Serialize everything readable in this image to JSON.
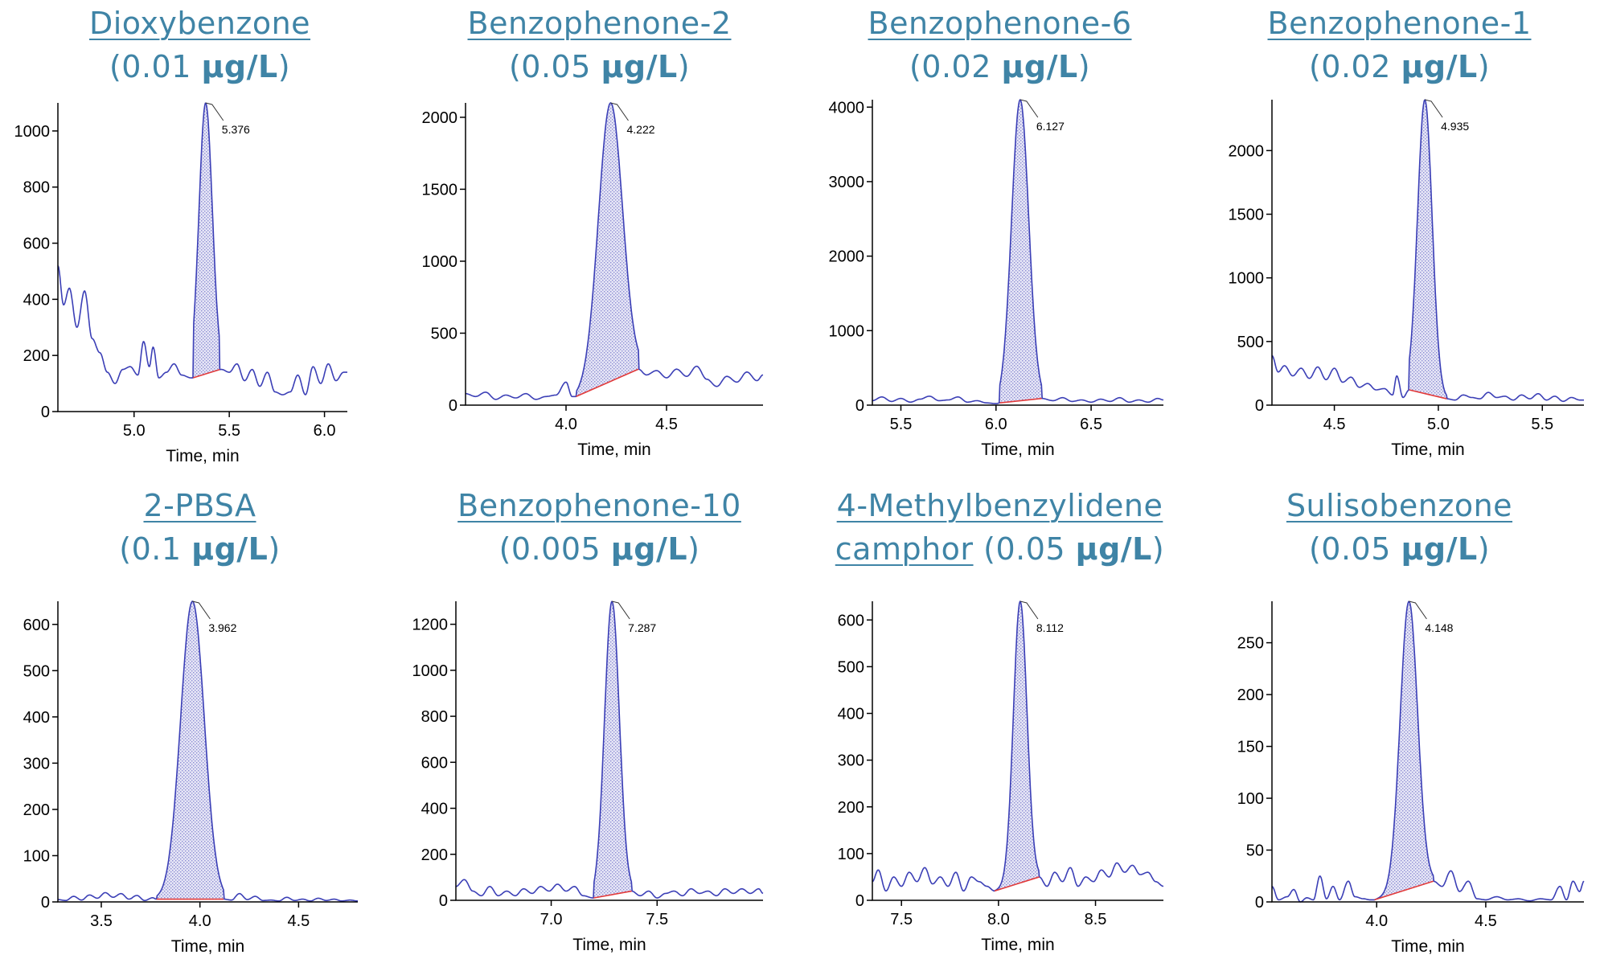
{
  "colors": {
    "title": "#3f84a6",
    "trace": "#3b3fb6",
    "fill": "#c7c7ea",
    "baseline": "#e23a3a",
    "axis": "#000000"
  },
  "chart_data": [
    {
      "type": "line",
      "title_name": "Dioxybenzone",
      "title_conc_pre": "(0.01 ",
      "title_unit": "µg/L",
      "title_conc_post": ")",
      "xlabel": "Time, min",
      "ylabel": "",
      "xlim": [
        4.6,
        6.12
      ],
      "ylim": [
        0,
        1100
      ],
      "xticks": [
        "5.0",
        "5.5",
        "6.0"
      ],
      "yticks": [
        "0",
        "200",
        "400",
        "600",
        "800",
        "1000"
      ],
      "peak": {
        "rt": "5.376",
        "x": 5.376,
        "height": 1100,
        "sigma": 0.035,
        "start": 5.31,
        "end": 5.45
      },
      "baseline_noise": [
        [
          4.6,
          520
        ],
        [
          4.63,
          380
        ],
        [
          4.66,
          440
        ],
        [
          4.7,
          300
        ],
        [
          4.74,
          430
        ],
        [
          4.78,
          260
        ],
        [
          4.82,
          210
        ],
        [
          4.86,
          140
        ],
        [
          4.9,
          100
        ],
        [
          4.94,
          150
        ],
        [
          4.98,
          160
        ],
        [
          5.02,
          130
        ],
        [
          5.05,
          250
        ],
        [
          5.08,
          160
        ],
        [
          5.1,
          230
        ],
        [
          5.13,
          120
        ],
        [
          5.17,
          140
        ],
        [
          5.21,
          170
        ],
        [
          5.25,
          130
        ],
        [
          5.3,
          120
        ],
        [
          5.46,
          150
        ],
        [
          5.5,
          140
        ],
        [
          5.54,
          170
        ],
        [
          5.58,
          110
        ],
        [
          5.62,
          150
        ],
        [
          5.66,
          90
        ],
        [
          5.7,
          140
        ],
        [
          5.74,
          70
        ],
        [
          5.78,
          60
        ],
        [
          5.82,
          70
        ],
        [
          5.86,
          130
        ],
        [
          5.9,
          60
        ],
        [
          5.94,
          160
        ],
        [
          5.98,
          100
        ],
        [
          6.02,
          170
        ],
        [
          6.06,
          110
        ],
        [
          6.1,
          140
        ],
        [
          6.12,
          140
        ]
      ]
    },
    {
      "type": "line",
      "title_name": "Benzophenone-2",
      "title_conc_pre": "(0.05 ",
      "title_unit": "µg/L",
      "title_conc_post": ")",
      "xlabel": "Time, min",
      "ylabel": "",
      "xlim": [
        3.5,
        4.98
      ],
      "ylim": [
        0,
        2100
      ],
      "xticks": [
        "4.0",
        "4.5"
      ],
      "yticks": [
        "0",
        "500",
        "1000",
        "1500",
        "2000"
      ],
      "peak": {
        "rt": "4.222",
        "x": 4.222,
        "height": 2100,
        "sigma": 0.06,
        "start": 4.05,
        "end": 4.36
      },
      "baseline_noise": [
        [
          3.5,
          80
        ],
        [
          3.55,
          60
        ],
        [
          3.6,
          90
        ],
        [
          3.65,
          40
        ],
        [
          3.7,
          70
        ],
        [
          3.75,
          50
        ],
        [
          3.8,
          80
        ],
        [
          3.85,
          40
        ],
        [
          3.9,
          60
        ],
        [
          3.95,
          70
        ],
        [
          4.0,
          160
        ],
        [
          4.03,
          60
        ],
        [
          4.05,
          60
        ],
        [
          4.36,
          250
        ],
        [
          4.4,
          210
        ],
        [
          4.45,
          240
        ],
        [
          4.5,
          190
        ],
        [
          4.55,
          250
        ],
        [
          4.6,
          200
        ],
        [
          4.65,
          270
        ],
        [
          4.7,
          180
        ],
        [
          4.75,
          130
        ],
        [
          4.8,
          200
        ],
        [
          4.85,
          160
        ],
        [
          4.9,
          230
        ],
        [
          4.95,
          170
        ],
        [
          4.98,
          210
        ]
      ]
    },
    {
      "type": "line",
      "title_name": "Benzophenone-6",
      "title_conc_pre": "(0.02 ",
      "title_unit": "µg/L",
      "title_conc_post": ")",
      "xlabel": "Time, min",
      "ylabel": "",
      "xlim": [
        5.35,
        6.88
      ],
      "ylim": [
        0,
        4100
      ],
      "xticks": [
        "5.5",
        "6.0",
        "6.5"
      ],
      "yticks": [
        "0",
        "1000",
        "2000",
        "3000",
        "4000"
      ],
      "peak": {
        "rt": "6.127",
        "x": 6.127,
        "height": 4100,
        "sigma": 0.045,
        "start": 6.02,
        "end": 6.24
      },
      "baseline_noise": [
        [
          5.35,
          60
        ],
        [
          5.4,
          110
        ],
        [
          5.45,
          50
        ],
        [
          5.5,
          90
        ],
        [
          5.55,
          40
        ],
        [
          5.6,
          80
        ],
        [
          5.65,
          120
        ],
        [
          5.7,
          60
        ],
        [
          5.75,
          70
        ],
        [
          5.8,
          110
        ],
        [
          5.85,
          40
        ],
        [
          5.9,
          60
        ],
        [
          5.95,
          30
        ],
        [
          6.0,
          20
        ],
        [
          6.02,
          30
        ],
        [
          6.24,
          90
        ],
        [
          6.3,
          60
        ],
        [
          6.35,
          100
        ],
        [
          6.4,
          50
        ],
        [
          6.45,
          70
        ],
        [
          6.5,
          40
        ],
        [
          6.55,
          80
        ],
        [
          6.6,
          50
        ],
        [
          6.65,
          100
        ],
        [
          6.7,
          40
        ],
        [
          6.75,
          70
        ],
        [
          6.8,
          40
        ],
        [
          6.85,
          90
        ],
        [
          6.88,
          70
        ]
      ]
    },
    {
      "type": "line",
      "title_name": "Benzophenone-1",
      "title_conc_pre": "(0.02 ",
      "title_unit": "µg/L",
      "title_conc_post": ")",
      "xlabel": "Time, min",
      "ylabel": "",
      "xlim": [
        4.2,
        5.7
      ],
      "ylim": [
        0,
        2400
      ],
      "xticks": [
        "4.5",
        "5.0",
        "5.5"
      ],
      "yticks": [
        "0",
        "500",
        "1000",
        "1500",
        "2000"
      ],
      "peak": {
        "rt": "4.935",
        "x": 4.935,
        "height": 2400,
        "sigma": 0.035,
        "start": 4.86,
        "end": 5.04
      },
      "baseline_noise": [
        [
          4.2,
          390
        ],
        [
          4.23,
          260
        ],
        [
          4.26,
          310
        ],
        [
          4.3,
          230
        ],
        [
          4.34,
          290
        ],
        [
          4.38,
          210
        ],
        [
          4.42,
          300
        ],
        [
          4.46,
          200
        ],
        [
          4.5,
          290
        ],
        [
          4.54,
          180
        ],
        [
          4.58,
          220
        ],
        [
          4.62,
          140
        ],
        [
          4.66,
          170
        ],
        [
          4.7,
          120
        ],
        [
          4.74,
          130
        ],
        [
          4.78,
          80
        ],
        [
          4.8,
          230
        ],
        [
          4.83,
          60
        ],
        [
          4.86,
          120
        ],
        [
          5.04,
          50
        ],
        [
          5.08,
          40
        ],
        [
          5.12,
          80
        ],
        [
          5.16,
          60
        ],
        [
          5.2,
          50
        ],
        [
          5.24,
          100
        ],
        [
          5.28,
          60
        ],
        [
          5.32,
          70
        ],
        [
          5.36,
          40
        ],
        [
          5.4,
          80
        ],
        [
          5.44,
          50
        ],
        [
          5.48,
          90
        ],
        [
          5.52,
          40
        ],
        [
          5.56,
          70
        ],
        [
          5.6,
          30
        ],
        [
          5.64,
          60
        ],
        [
          5.68,
          40
        ],
        [
          5.7,
          40
        ]
      ]
    },
    {
      "type": "line",
      "title_name": "2-PBSA",
      "title_conc_pre": "(0.1 ",
      "title_unit": "µg/L",
      "title_conc_post": ")",
      "xlabel": "Time, min",
      "ylabel": "",
      "xlim": [
        3.28,
        4.8
      ],
      "ylim": [
        0,
        650
      ],
      "xticks": [
        "3.5",
        "4.0",
        "4.5"
      ],
      "yticks": [
        "0",
        "100",
        "200",
        "300",
        "400",
        "500",
        "600"
      ],
      "peak": {
        "rt": "3.962",
        "x": 3.962,
        "height": 650,
        "sigma": 0.06,
        "start": 3.78,
        "end": 4.12
      },
      "baseline_noise": [
        [
          3.28,
          5
        ],
        [
          3.32,
          3
        ],
        [
          3.36,
          12
        ],
        [
          3.4,
          4
        ],
        [
          3.44,
          15
        ],
        [
          3.48,
          8
        ],
        [
          3.52,
          20
        ],
        [
          3.56,
          10
        ],
        [
          3.6,
          18
        ],
        [
          3.64,
          6
        ],
        [
          3.68,
          14
        ],
        [
          3.72,
          3
        ],
        [
          3.76,
          9
        ],
        [
          3.78,
          6
        ],
        [
          4.12,
          6
        ],
        [
          4.16,
          4
        ],
        [
          4.2,
          18
        ],
        [
          4.24,
          5
        ],
        [
          4.28,
          12
        ],
        [
          4.32,
          3
        ],
        [
          4.36,
          4
        ],
        [
          4.4,
          2
        ],
        [
          4.44,
          10
        ],
        [
          4.48,
          3
        ],
        [
          4.52,
          6
        ],
        [
          4.56,
          2
        ],
        [
          4.6,
          8
        ],
        [
          4.64,
          3
        ],
        [
          4.68,
          6
        ],
        [
          4.72,
          2
        ],
        [
          4.76,
          4
        ],
        [
          4.8,
          2
        ]
      ]
    },
    {
      "type": "line",
      "title_name": "Benzophenone-10",
      "title_conc_pre": "(0.005 ",
      "title_unit": "µg/L",
      "title_conc_post": ")",
      "xlabel": "Time, min",
      "ylabel": "",
      "xlim": [
        6.55,
        8.0
      ],
      "ylim": [
        0,
        1300
      ],
      "xticks": [
        "7.0",
        "7.5"
      ],
      "yticks": [
        "0",
        "200",
        "400",
        "600",
        "800",
        "1000",
        "1200"
      ],
      "peak": {
        "rt": "7.287",
        "x": 7.287,
        "height": 1300,
        "sigma": 0.035,
        "start": 7.2,
        "end": 7.38
      },
      "baseline_noise": [
        [
          6.55,
          60
        ],
        [
          6.59,
          90
        ],
        [
          6.63,
          40
        ],
        [
          6.67,
          20
        ],
        [
          6.71,
          60
        ],
        [
          6.75,
          20
        ],
        [
          6.79,
          40
        ],
        [
          6.83,
          20
        ],
        [
          6.87,
          50
        ],
        [
          6.91,
          30
        ],
        [
          6.95,
          60
        ],
        [
          6.99,
          40
        ],
        [
          7.03,
          70
        ],
        [
          7.07,
          40
        ],
        [
          7.11,
          60
        ],
        [
          7.15,
          20
        ],
        [
          7.2,
          10
        ],
        [
          7.38,
          40
        ],
        [
          7.42,
          20
        ],
        [
          7.46,
          40
        ],
        [
          7.5,
          10
        ],
        [
          7.54,
          30
        ],
        [
          7.58,
          40
        ],
        [
          7.62,
          20
        ],
        [
          7.66,
          50
        ],
        [
          7.7,
          30
        ],
        [
          7.74,
          40
        ],
        [
          7.78,
          20
        ],
        [
          7.82,
          50
        ],
        [
          7.86,
          30
        ],
        [
          7.9,
          50
        ],
        [
          7.94,
          30
        ],
        [
          7.98,
          50
        ],
        [
          8.0,
          30
        ]
      ]
    },
    {
      "type": "line",
      "title_name": "4-Methylbenzylidene",
      "title_name2": "camphor",
      "title_conc_pre": " (0.05 ",
      "title_unit": "µg/L",
      "title_conc_post": ")",
      "xlabel": "Time, min",
      "ylabel": "",
      "xlim": [
        7.35,
        8.85
      ],
      "ylim": [
        0,
        640
      ],
      "xticks": [
        "7.5",
        "8.0",
        "8.5"
      ],
      "yticks": [
        "0",
        "100",
        "200",
        "300",
        "400",
        "500",
        "600"
      ],
      "peak": {
        "rt": "8.112",
        "x": 8.112,
        "height": 640,
        "sigma": 0.035,
        "start": 7.98,
        "end": 8.21
      },
      "baseline_noise": [
        [
          7.35,
          40
        ],
        [
          7.38,
          65
        ],
        [
          7.42,
          20
        ],
        [
          7.46,
          50
        ],
        [
          7.5,
          30
        ],
        [
          7.54,
          60
        ],
        [
          7.58,
          40
        ],
        [
          7.62,
          70
        ],
        [
          7.66,
          35
        ],
        [
          7.7,
          50
        ],
        [
          7.74,
          30
        ],
        [
          7.78,
          60
        ],
        [
          7.82,
          20
        ],
        [
          7.86,
          50
        ],
        [
          7.9,
          40
        ],
        [
          7.94,
          30
        ],
        [
          7.98,
          20
        ],
        [
          8.21,
          50
        ],
        [
          8.25,
          30
        ],
        [
          8.29,
          60
        ],
        [
          8.33,
          40
        ],
        [
          8.37,
          70
        ],
        [
          8.41,
          30
        ],
        [
          8.45,
          50
        ],
        [
          8.49,
          40
        ],
        [
          8.53,
          65
        ],
        [
          8.57,
          50
        ],
        [
          8.61,
          80
        ],
        [
          8.65,
          60
        ],
        [
          8.69,
          75
        ],
        [
          8.73,
          55
        ],
        [
          8.77,
          60
        ],
        [
          8.81,
          40
        ],
        [
          8.85,
          30
        ]
      ]
    },
    {
      "type": "line",
      "title_name": "Sulisobenzone",
      "title_conc_pre": "(0.05 ",
      "title_unit": "µg/L",
      "title_conc_post": ")",
      "xlabel": "Time, min",
      "ylabel": "",
      "xlim": [
        3.52,
        4.95
      ],
      "ylim": [
        0,
        290
      ],
      "xticks": [
        "4.0",
        "4.5"
      ],
      "yticks": [
        "0",
        "50",
        "100",
        "150",
        "200",
        "250"
      ],
      "peak": {
        "rt": "4.148",
        "x": 4.148,
        "height": 290,
        "sigma": 0.04,
        "start": 3.99,
        "end": 4.26
      },
      "baseline_noise": [
        [
          3.52,
          15
        ],
        [
          3.55,
          2
        ],
        [
          3.59,
          5
        ],
        [
          3.62,
          12
        ],
        [
          3.65,
          0
        ],
        [
          3.68,
          4
        ],
        [
          3.71,
          2
        ],
        [
          3.74,
          25
        ],
        [
          3.77,
          3
        ],
        [
          3.8,
          15
        ],
        [
          3.83,
          2
        ],
        [
          3.87,
          20
        ],
        [
          3.9,
          5
        ],
        [
          3.94,
          3
        ],
        [
          3.97,
          2
        ],
        [
          3.99,
          2
        ],
        [
          4.26,
          20
        ],
        [
          4.3,
          15
        ],
        [
          4.34,
          30
        ],
        [
          4.38,
          10
        ],
        [
          4.42,
          20
        ],
        [
          4.46,
          3
        ],
        [
          4.5,
          2
        ],
        [
          4.55,
          5
        ],
        [
          4.6,
          2
        ],
        [
          4.65,
          3
        ],
        [
          4.7,
          1
        ],
        [
          4.75,
          3
        ],
        [
          4.8,
          2
        ],
        [
          4.84,
          15
        ],
        [
          4.87,
          2
        ],
        [
          4.9,
          20
        ],
        [
          4.93,
          10
        ],
        [
          4.95,
          20
        ]
      ]
    }
  ]
}
